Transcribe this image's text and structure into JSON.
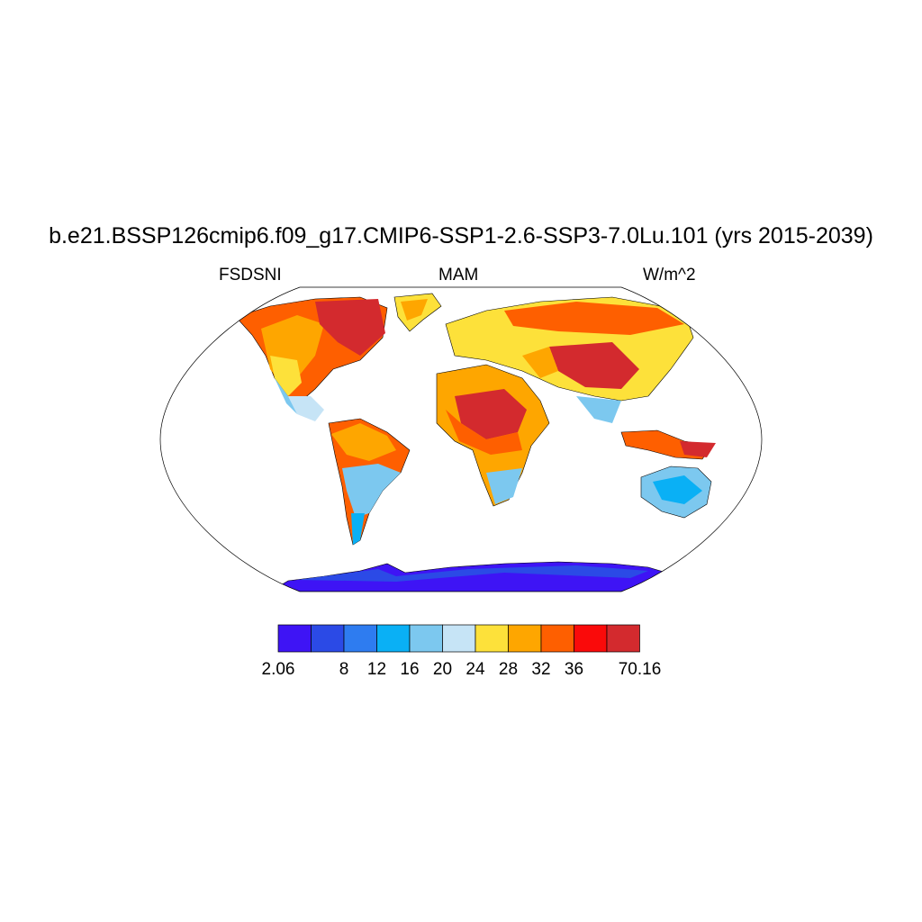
{
  "title": "b.e21.BSSP126cmip6.f09_g17.CMIP6-SSP1-2.6-SSP3-7.0Lu.101 (yrs 2015-2039)",
  "left_label": "FSDSNI",
  "center_label": "MAM",
  "right_label": "W/m^2",
  "colorbar": {
    "colors": [
      "#3e14f5",
      "#2b4ae6",
      "#2e7cf0",
      "#0ab0f5",
      "#7cc8ef",
      "#c6e4f6",
      "#fde13a",
      "#fea600",
      "#fe5f00",
      "#fa0a0a",
      "#d32a2e"
    ],
    "labels": [
      {
        "text": "2.06",
        "boundary": 0
      },
      {
        "text": "8",
        "boundary": 2
      },
      {
        "text": "12",
        "boundary": 3
      },
      {
        "text": "16",
        "boundary": 4
      },
      {
        "text": "20",
        "boundary": 5
      },
      {
        "text": "24",
        "boundary": 6
      },
      {
        "text": "28",
        "boundary": 7
      },
      {
        "text": "32",
        "boundary": 8
      },
      {
        "text": "36",
        "boundary": 9
      },
      {
        "text": "70.16",
        "boundary": 11
      }
    ]
  },
  "legend_colors": {
    "land_outline": "#000000",
    "ocean": "#ffffff"
  }
}
